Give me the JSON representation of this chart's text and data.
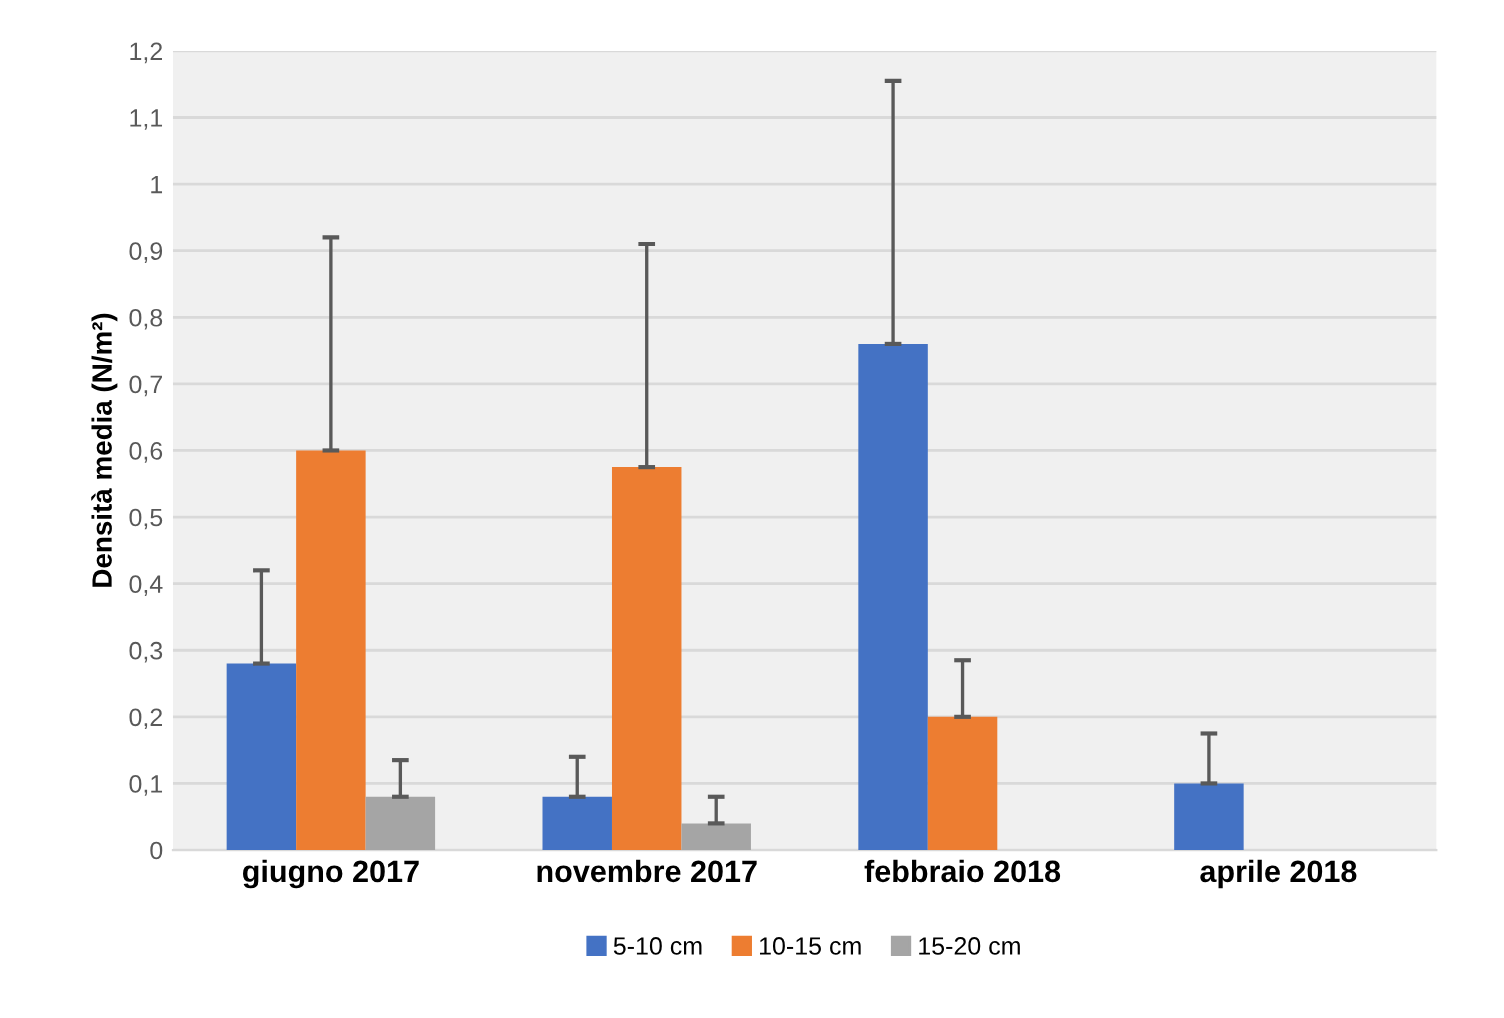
{
  "chart_data": {
    "type": "bar",
    "ylabel": "Densità media (N/m²)",
    "categories": [
      "giugno 2017",
      "novembre 2017",
      "febbraio 2018",
      "aprile 2018"
    ],
    "series": [
      {
        "name": "5-10 cm",
        "color": "#4472c4",
        "values": [
          0.28,
          0.08,
          0.76,
          0.1
        ],
        "errors": [
          [
            0.28,
            0.42
          ],
          [
            0.08,
            0.14
          ],
          [
            0.76,
            1.155
          ],
          [
            0.1,
            0.175
          ]
        ]
      },
      {
        "name": "10-15 cm",
        "color": "#ed7d31",
        "values": [
          0.6,
          0.575,
          0.2,
          null
        ],
        "errors": [
          [
            0.6,
            0.92
          ],
          [
            0.575,
            0.91
          ],
          [
            0.2,
            0.285
          ],
          null
        ]
      },
      {
        "name": "15-20 cm",
        "color": "#a5a5a5",
        "values": [
          0.08,
          0.04,
          null,
          null
        ],
        "errors": [
          [
            0.08,
            0.135
          ],
          [
            0.04,
            0.08
          ],
          null,
          null
        ]
      }
    ],
    "ylim": [
      0,
      1.2
    ],
    "yticks": [
      {
        "value": 0,
        "label": "0"
      },
      {
        "value": 0.1,
        "label": "0,1"
      },
      {
        "value": 0.2,
        "label": "0,2"
      },
      {
        "value": 0.3,
        "label": "0,3"
      },
      {
        "value": 0.4,
        "label": "0,4"
      },
      {
        "value": 0.5,
        "label": "0,5"
      },
      {
        "value": 0.6,
        "label": "0,6"
      },
      {
        "value": 0.7,
        "label": "0,7"
      },
      {
        "value": 0.8,
        "label": "0,8"
      },
      {
        "value": 0.9,
        "label": "0,9"
      },
      {
        "value": 1,
        "label": "1"
      },
      {
        "value": 1.1,
        "label": "1,1"
      },
      {
        "value": 1.2,
        "label": "1,2"
      }
    ],
    "grid": "y",
    "legend": "bottom"
  }
}
